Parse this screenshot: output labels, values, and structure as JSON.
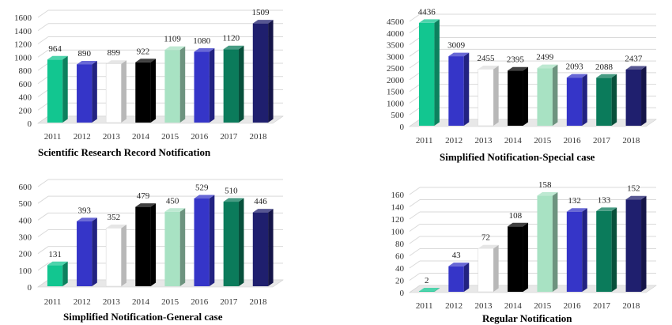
{
  "colors": {
    "2011": "#12c690",
    "2012": "#3535c8",
    "2013": "#ffffff",
    "2014": "#000000",
    "2015": "#a8e2c3",
    "2016": "#3535c8",
    "2017": "#0b7b5b",
    "2018": "#1f1f6e"
  },
  "chart_data": [
    {
      "type": "bar",
      "title": "Scientific Research Record Notification",
      "categories": [
        "2011",
        "2012",
        "2013",
        "2014",
        "2015",
        "2016",
        "2017",
        "2018"
      ],
      "values": [
        964,
        890,
        899,
        922,
        1109,
        1080,
        1120,
        1509
      ],
      "ylim": [
        0,
        1600
      ],
      "yticks": [
        0,
        200,
        400,
        600,
        800,
        1000,
        1200,
        1400,
        1600
      ],
      "grid": true
    },
    {
      "type": "bar",
      "title": "Simplified Notification-Special case",
      "categories": [
        "2011",
        "2012",
        "2013",
        "2014",
        "2015",
        "2016",
        "2017",
        "2018"
      ],
      "values": [
        4436,
        3009,
        2455,
        2395,
        2499,
        2093,
        2088,
        2437
      ],
      "ylim": [
        0,
        4500
      ],
      "yticks": [
        0,
        500,
        1000,
        1500,
        2000,
        2500,
        3000,
        3500,
        4000,
        4500
      ],
      "grid": true
    },
    {
      "type": "bar",
      "title": "Simplified Notification-General case",
      "categories": [
        "2011",
        "2012",
        "2013",
        "2014",
        "2015",
        "2016",
        "2017",
        "2018"
      ],
      "values": [
        131,
        393,
        352,
        479,
        450,
        529,
        510,
        446
      ],
      "ylim": [
        0,
        600
      ],
      "yticks": [
        0,
        100,
        200,
        300,
        400,
        500,
        600
      ],
      "grid": true
    },
    {
      "type": "bar",
      "title": "Regular Notification",
      "categories": [
        "2011",
        "2012",
        "2013",
        "2014",
        "2015",
        "2016",
        "2017",
        "2018"
      ],
      "values": [
        2,
        43,
        72,
        108,
        158,
        132,
        133,
        152
      ],
      "ylim": [
        0,
        160
      ],
      "yticks": [
        0,
        20,
        40,
        60,
        80,
        100,
        120,
        140,
        160
      ],
      "grid": true
    }
  ]
}
